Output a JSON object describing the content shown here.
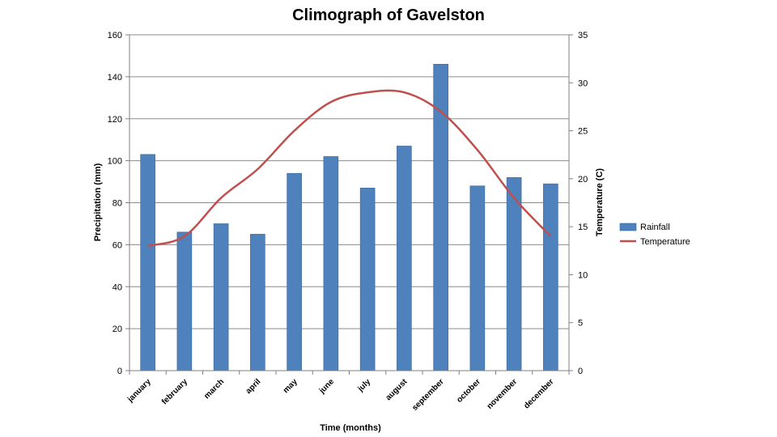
{
  "chart_data": {
    "type": "bar+line",
    "title": "Climograph of Gavelston",
    "xlabel": "Time (months)",
    "ylabel_left": "Precipitation (mm)",
    "ylabel_right": "Temperature (C)",
    "ylim_left": [
      0,
      160
    ],
    "ylim_right": [
      0,
      35
    ],
    "yticks_left": [
      0,
      20,
      40,
      60,
      80,
      100,
      120,
      140,
      160
    ],
    "yticks_right": [
      0,
      5,
      10,
      15,
      20,
      25,
      30,
      35
    ],
    "grid": true,
    "legend_position": "right",
    "categories": [
      "january",
      "february",
      "march",
      "april",
      "may",
      "june",
      "july",
      "august",
      "september",
      "october",
      "november",
      "december"
    ],
    "series": [
      {
        "name": "Rainfall",
        "type": "bar",
        "axis": "left",
        "color": "#4F81BD",
        "values": [
          103,
          66,
          70,
          65,
          94,
          102,
          87,
          107,
          146,
          88,
          92,
          89
        ]
      },
      {
        "name": "Temperature",
        "type": "line",
        "axis": "right",
        "color": "#C0504D",
        "values": [
          13,
          14,
          18,
          21,
          25,
          28,
          29,
          29,
          27,
          23,
          18,
          14
        ]
      }
    ]
  },
  "colors": {
    "bar_edge": "#3A6796",
    "grid": "#8C8C8C",
    "axis": "#808080"
  }
}
